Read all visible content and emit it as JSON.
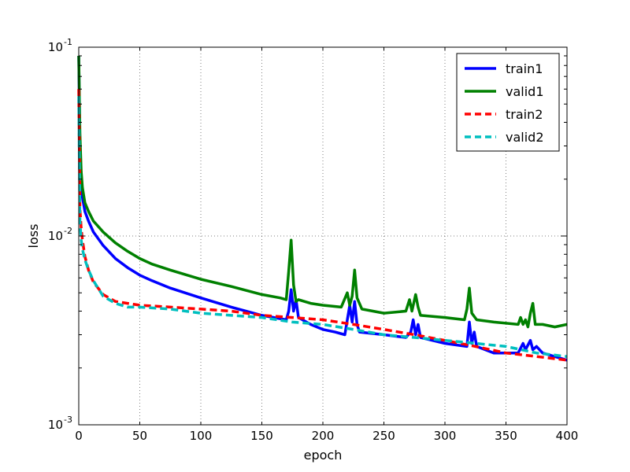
{
  "chart_data": {
    "type": "line",
    "xlabel": "epoch",
    "ylabel": "loss",
    "xlim": [
      0,
      400
    ],
    "ylim": [
      0.001,
      0.1
    ],
    "yscale": "log",
    "grid": true,
    "legend_position": "top-right",
    "x_ticks": [
      0,
      50,
      100,
      150,
      200,
      250,
      300,
      350,
      400
    ],
    "x_tick_labels": [
      "0",
      "50",
      "100",
      "150",
      "200",
      "250",
      "300",
      "350",
      "400"
    ],
    "y_ticks": [
      0.001,
      0.01,
      0.1
    ],
    "y_tick_labels": [
      {
        "base": "10",
        "exp": "-3"
      },
      {
        "base": "10",
        "exp": "-2"
      },
      {
        "base": "10",
        "exp": "-1"
      }
    ],
    "series": [
      {
        "name": "train1",
        "color": "#0000ff",
        "dash": "solid",
        "points": [
          [
            0,
            0.09
          ],
          [
            1,
            0.03
          ],
          [
            2,
            0.02
          ],
          [
            3,
            0.016
          ],
          [
            5,
            0.0135
          ],
          [
            8,
            0.012
          ],
          [
            12,
            0.0105
          ],
          [
            20,
            0.0089
          ],
          [
            30,
            0.0076
          ],
          [
            40,
            0.0068
          ],
          [
            50,
            0.0062
          ],
          [
            60,
            0.0058
          ],
          [
            75,
            0.0053
          ],
          [
            100,
            0.0047
          ],
          [
            125,
            0.0042
          ],
          [
            150,
            0.0038
          ],
          [
            170,
            0.0036
          ],
          [
            172,
            0.004
          ],
          [
            174,
            0.0052
          ],
          [
            176,
            0.004
          ],
          [
            178,
            0.0046
          ],
          [
            180,
            0.0037
          ],
          [
            190,
            0.0034
          ],
          [
            200,
            0.0032
          ],
          [
            210,
            0.0031
          ],
          [
            218,
            0.003
          ],
          [
            222,
            0.0043
          ],
          [
            224,
            0.0035
          ],
          [
            226,
            0.0045
          ],
          [
            228,
            0.0034
          ],
          [
            230,
            0.0031
          ],
          [
            250,
            0.003
          ],
          [
            268,
            0.0029
          ],
          [
            272,
            0.0031
          ],
          [
            274,
            0.0036
          ],
          [
            276,
            0.003
          ],
          [
            278,
            0.0034
          ],
          [
            280,
            0.0029
          ],
          [
            300,
            0.0027
          ],
          [
            318,
            0.0026
          ],
          [
            320,
            0.0035
          ],
          [
            322,
            0.0027
          ],
          [
            324,
            0.0031
          ],
          [
            326,
            0.0026
          ],
          [
            340,
            0.0024
          ],
          [
            360,
            0.0024
          ],
          [
            364,
            0.0027
          ],
          [
            366,
            0.0025
          ],
          [
            370,
            0.0028
          ],
          [
            372,
            0.0025
          ],
          [
            375,
            0.0026
          ],
          [
            380,
            0.0024
          ],
          [
            400,
            0.0022
          ]
        ]
      },
      {
        "name": "valid1",
        "color": "#008000",
        "dash": "solid",
        "points": [
          [
            0,
            0.09
          ],
          [
            1,
            0.035
          ],
          [
            2,
            0.022
          ],
          [
            3,
            0.018
          ],
          [
            5,
            0.015
          ],
          [
            8,
            0.0135
          ],
          [
            12,
            0.012
          ],
          [
            20,
            0.0105
          ],
          [
            30,
            0.0092
          ],
          [
            40,
            0.0083
          ],
          [
            50,
            0.0076
          ],
          [
            60,
            0.0071
          ],
          [
            75,
            0.0066
          ],
          [
            100,
            0.0059
          ],
          [
            125,
            0.0054
          ],
          [
            150,
            0.0049
          ],
          [
            165,
            0.0047
          ],
          [
            170,
            0.0046
          ],
          [
            172,
            0.0065
          ],
          [
            174,
            0.0095
          ],
          [
            176,
            0.0055
          ],
          [
            178,
            0.0045
          ],
          [
            180,
            0.0046
          ],
          [
            190,
            0.0044
          ],
          [
            200,
            0.0043
          ],
          [
            215,
            0.0042
          ],
          [
            220,
            0.005
          ],
          [
            222,
            0.0043
          ],
          [
            224,
            0.0048
          ],
          [
            226,
            0.0066
          ],
          [
            228,
            0.0047
          ],
          [
            232,
            0.0041
          ],
          [
            250,
            0.0039
          ],
          [
            268,
            0.004
          ],
          [
            271,
            0.0046
          ],
          [
            273,
            0.004
          ],
          [
            276,
            0.0049
          ],
          [
            278,
            0.0042
          ],
          [
            280,
            0.0038
          ],
          [
            300,
            0.0037
          ],
          [
            316,
            0.0036
          ],
          [
            318,
            0.0041
          ],
          [
            320,
            0.0053
          ],
          [
            322,
            0.0039
          ],
          [
            326,
            0.0036
          ],
          [
            340,
            0.0035
          ],
          [
            360,
            0.0034
          ],
          [
            362,
            0.0037
          ],
          [
            364,
            0.0034
          ],
          [
            366,
            0.0036
          ],
          [
            368,
            0.0033
          ],
          [
            370,
            0.0039
          ],
          [
            372,
            0.0044
          ],
          [
            374,
            0.0034
          ],
          [
            380,
            0.0034
          ],
          [
            390,
            0.0033
          ],
          [
            400,
            0.0034
          ]
        ]
      },
      {
        "name": "train2",
        "color": "#ff0000",
        "dash": "dashed",
        "points": [
          [
            0,
            0.06
          ],
          [
            1,
            0.014
          ],
          [
            2,
            0.011
          ],
          [
            3,
            0.0095
          ],
          [
            5,
            0.0078
          ],
          [
            8,
            0.0066
          ],
          [
            12,
            0.0057
          ],
          [
            20,
            0.0049
          ],
          [
            30,
            0.0045
          ],
          [
            40,
            0.0044
          ],
          [
            50,
            0.0043
          ],
          [
            75,
            0.0042
          ],
          [
            100,
            0.0041
          ],
          [
            125,
            0.004
          ],
          [
            150,
            0.0038
          ],
          [
            175,
            0.0037
          ],
          [
            200,
            0.0036
          ],
          [
            225,
            0.0034
          ],
          [
            250,
            0.0032
          ],
          [
            275,
            0.003
          ],
          [
            300,
            0.0028
          ],
          [
            325,
            0.0026
          ],
          [
            350,
            0.0024
          ],
          [
            375,
            0.0023
          ],
          [
            400,
            0.0022
          ]
        ]
      },
      {
        "name": "valid2",
        "color": "#00bfbf",
        "dash": "dashed",
        "points": [
          [
            0,
            0.055
          ],
          [
            1,
            0.012
          ],
          [
            2,
            0.0095
          ],
          [
            3,
            0.0085
          ],
          [
            5,
            0.0075
          ],
          [
            8,
            0.0066
          ],
          [
            12,
            0.0058
          ],
          [
            20,
            0.0048
          ],
          [
            30,
            0.0044
          ],
          [
            40,
            0.0042
          ],
          [
            50,
            0.0042
          ],
          [
            75,
            0.0041
          ],
          [
            100,
            0.0039
          ],
          [
            125,
            0.0038
          ],
          [
            150,
            0.0037
          ],
          [
            175,
            0.0035
          ],
          [
            200,
            0.0034
          ],
          [
            225,
            0.0032
          ],
          [
            250,
            0.003
          ],
          [
            275,
            0.0029
          ],
          [
            300,
            0.0028
          ],
          [
            325,
            0.0027
          ],
          [
            350,
            0.0026
          ],
          [
            375,
            0.0024
          ],
          [
            400,
            0.0023
          ]
        ]
      }
    ]
  }
}
